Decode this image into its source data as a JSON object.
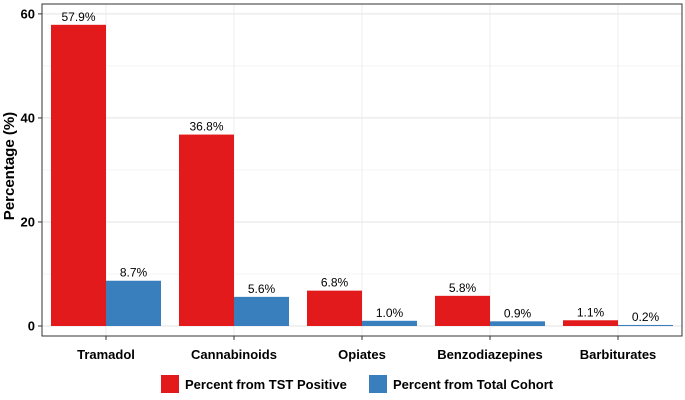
{
  "chart_data": {
    "type": "bar",
    "title": "",
    "xlabel": "",
    "ylabel": "Percentage (%)",
    "ylim": [
      0,
      60
    ],
    "yticks": [
      0,
      20,
      40,
      60
    ],
    "grid": true,
    "legend_position": "bottom",
    "categories": [
      "Tramadol",
      "Cannabinoids",
      "Opiates",
      "Benzodiazepines",
      "Barbiturates"
    ],
    "series": [
      {
        "name": "Percent from TST Positive",
        "color": "#e31a1c",
        "values": [
          57.9,
          36.8,
          6.8,
          5.8,
          1.1
        ],
        "labels": [
          "57.9%",
          "36.8%",
          "6.8%",
          "5.8%",
          "1.1%"
        ]
      },
      {
        "name": "Percent from Total Cohort",
        "color": "#3a7fbd",
        "values": [
          8.7,
          5.6,
          1.0,
          0.9,
          0.2
        ],
        "labels": [
          "8.7%",
          "5.6%",
          "1.0%",
          "0.9%",
          "0.2%"
        ]
      }
    ]
  }
}
